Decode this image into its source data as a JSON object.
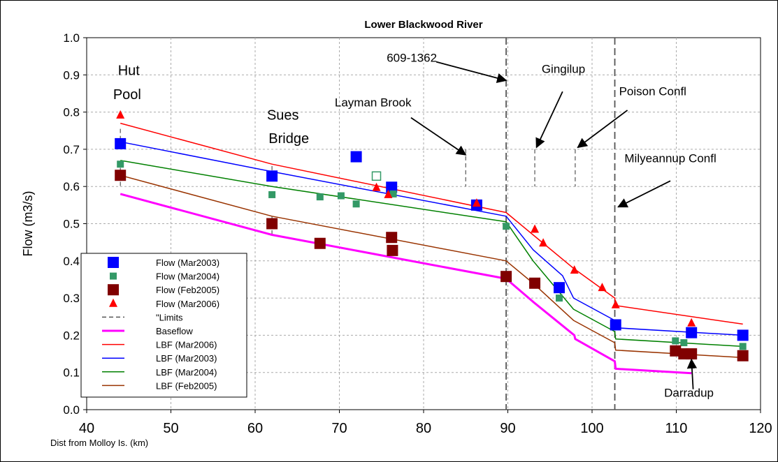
{
  "chart_data": {
    "type": "scatter",
    "title": "Lower Blackwood River",
    "xlabel": "Dist from Molloy Is. (km)",
    "ylabel": "Flow (m3/s)",
    "xlim": [
      40,
      120
    ],
    "ylim": [
      0,
      1.0
    ],
    "xticks": [
      "40",
      "50",
      "60",
      "70",
      "80",
      "90",
      "100",
      "110",
      "120"
    ],
    "yticks": [
      "0.0",
      "0.1",
      "0.2",
      "0.3",
      "0.4",
      "0.5",
      "0.6",
      "0.7",
      "0.8",
      "0.9",
      "1.0"
    ],
    "grid": true,
    "legend_position": "bottom-left",
    "series": [
      {
        "name": "Flow  (Mar2003)",
        "kind": "marker",
        "marker": "square",
        "color": "#0000ff",
        "points": [
          [
            44,
            0.715
          ],
          [
            62,
            0.628
          ],
          [
            72,
            0.68
          ],
          [
            76.2,
            0.598
          ],
          [
            86.3,
            0.55
          ],
          [
            96.1,
            0.328
          ],
          [
            102.8,
            0.228
          ],
          [
            111.8,
            0.207
          ],
          [
            117.9,
            0.2
          ]
        ]
      },
      {
        "name": "Flow  (Mar2004)",
        "kind": "marker",
        "marker": "square-small",
        "color": "#339966",
        "points": [
          [
            44,
            0.66
          ],
          [
            62,
            0.578
          ],
          [
            67.7,
            0.572
          ],
          [
            70.2,
            0.575
          ],
          [
            72,
            0.553
          ],
          [
            76.4,
            0.58
          ],
          [
            89.8,
            0.493
          ],
          [
            96.1,
            0.3
          ],
          [
            109.9,
            0.185
          ],
          [
            110.9,
            0.18
          ],
          [
            117.9,
            0.17
          ]
        ]
      },
      {
        "name": "Flow  (Feb2005)",
        "kind": "marker",
        "marker": "square",
        "color": "#800000",
        "points": [
          [
            44,
            0.63
          ],
          [
            62,
            0.5
          ],
          [
            67.7,
            0.447
          ],
          [
            76.2,
            0.463
          ],
          [
            76.3,
            0.428
          ],
          [
            89.8,
            0.358
          ],
          [
            93.2,
            0.34
          ],
          [
            109.9,
            0.158
          ],
          [
            110.9,
            0.15
          ],
          [
            111.8,
            0.15
          ],
          [
            117.9,
            0.145
          ]
        ]
      },
      {
        "name": "Flow  (Mar2006)",
        "kind": "marker",
        "marker": "triangle",
        "color": "#ff0000",
        "points": [
          [
            44,
            0.792
          ],
          [
            74.4,
            0.597
          ],
          [
            75.8,
            0.578
          ],
          [
            86.3,
            0.555
          ],
          [
            93.2,
            0.485
          ],
          [
            94.2,
            0.448
          ],
          [
            97.9,
            0.375
          ],
          [
            101.2,
            0.328
          ],
          [
            102.8,
            0.282
          ],
          [
            111.8,
            0.233
          ]
        ]
      },
      {
        "name": "Flow open",
        "kind": "marker",
        "marker": "square-open",
        "color": "#339966",
        "points": [
          [
            74.4,
            0.628
          ]
        ]
      },
      {
        "name": "\"Limits",
        "kind": "line",
        "color": "#555555",
        "dash": "6,4",
        "segments": [
          [
            [
              44,
              0.755
            ],
            [
              44,
              0.728
            ]
          ],
          [
            [
              44,
              0.65
            ],
            [
              44,
              0.6
            ]
          ],
          [
            [
              62,
              0.655
            ],
            [
              62,
              0.64
            ]
          ],
          [
            [
              62,
              0.52
            ],
            [
              62,
              0.47
            ]
          ],
          [
            [
              85,
              0.7
            ],
            [
              85,
              0.6
            ]
          ],
          [
            [
              93.2,
              0.7
            ],
            [
              93.2,
              0.6
            ]
          ],
          [
            [
              98,
              0.7
            ],
            [
              98,
              0.6
            ]
          ]
        ]
      },
      {
        "name": "Limits-major",
        "kind": "line",
        "color": "#555555",
        "dash": "10,5",
        "segments": [
          [
            [
              89.8,
              1.0
            ],
            [
              89.8,
              0.0
            ]
          ],
          [
            [
              102.7,
              1.0
            ],
            [
              102.7,
              0.0
            ]
          ]
        ]
      },
      {
        "name": "Baseflow",
        "kind": "line",
        "color": "#ff00ff",
        "width": 3,
        "points": [
          [
            44,
            0.58
          ],
          [
            62,
            0.47
          ],
          [
            89.8,
            0.352
          ],
          [
            93,
            0.29
          ],
          [
            97.9,
            0.2
          ],
          [
            98,
            0.19
          ],
          [
            102.7,
            0.13
          ],
          [
            102.8,
            0.11
          ],
          [
            111.8,
            0.098
          ]
        ]
      },
      {
        "name": "LBF (Mar2006)",
        "kind": "line",
        "color": "#ff0000",
        "width": 1.5,
        "points": [
          [
            44,
            0.77
          ],
          [
            62,
            0.66
          ],
          [
            89.8,
            0.53
          ],
          [
            93,
            0.47
          ],
          [
            97.8,
            0.38
          ],
          [
            102.7,
            0.3
          ],
          [
            102.8,
            0.28
          ],
          [
            117.9,
            0.23
          ]
        ]
      },
      {
        "name": "LBF (Mar2003)",
        "kind": "line",
        "color": "#0000ff",
        "width": 1.5,
        "points": [
          [
            44,
            0.72
          ],
          [
            62,
            0.64
          ],
          [
            89.8,
            0.52
          ],
          [
            93,
            0.43
          ],
          [
            96.5,
            0.36
          ],
          [
            97.8,
            0.3
          ],
          [
            102.7,
            0.24
          ],
          [
            102.8,
            0.22
          ],
          [
            117.9,
            0.2
          ]
        ]
      },
      {
        "name": "LBF (Mar2004)",
        "kind": "line",
        "color": "#008000",
        "width": 1.5,
        "points": [
          [
            44,
            0.67
          ],
          [
            62,
            0.6
          ],
          [
            89.8,
            0.505
          ],
          [
            93,
            0.4
          ],
          [
            97.8,
            0.27
          ],
          [
            102.7,
            0.21
          ],
          [
            102.8,
            0.19
          ],
          [
            117.9,
            0.17
          ]
        ]
      },
      {
        "name": "LBF (Feb2005)",
        "kind": "line",
        "color": "#993300",
        "width": 1.5,
        "points": [
          [
            44,
            0.63
          ],
          [
            62,
            0.52
          ],
          [
            89.8,
            0.4
          ],
          [
            93,
            0.34
          ],
          [
            97.8,
            0.24
          ],
          [
            102.7,
            0.18
          ],
          [
            102.8,
            0.16
          ],
          [
            117.9,
            0.14
          ]
        ]
      }
    ],
    "annotations": [
      {
        "text": "Hut",
        "x": 45,
        "y": 0.9
      },
      {
        "text": "Pool",
        "x": 44.8,
        "y": 0.835
      },
      {
        "text": "Sues",
        "x": 63.3,
        "y": 0.78
      },
      {
        "text": "Bridge",
        "x": 64,
        "y": 0.717
      },
      {
        "text": "Layman Brook",
        "x": 74,
        "y": 0.815
      },
      {
        "text": "609-1362",
        "x": 78.6,
        "y": 0.935
      },
      {
        "text": "Gingilup",
        "x": 96.6,
        "y": 0.905
      },
      {
        "text": "Poison Confl",
        "x": 107.2,
        "y": 0.845
      },
      {
        "text": "Milyeannup Confl",
        "x": 109.3,
        "y": 0.665
      },
      {
        "text": "Darradup",
        "x": 111.5,
        "y": 0.035
      }
    ],
    "arrows": [
      {
        "from": [
          81.5,
          0.935
        ],
        "to": [
          89.8,
          0.885
        ]
      },
      {
        "from": [
          78.5,
          0.785
        ],
        "to": [
          85,
          0.685
        ]
      },
      {
        "from": [
          96.5,
          0.855
        ],
        "to": [
          93.4,
          0.705
        ]
      },
      {
        "from": [
          104.2,
          0.805
        ],
        "to": [
          98.3,
          0.705
        ]
      },
      {
        "from": [
          109.3,
          0.615
        ],
        "to": [
          103.1,
          0.545
        ]
      },
      {
        "from": [
          112,
          0.055
        ],
        "to": [
          111.8,
          0.135
        ]
      }
    ],
    "legend": [
      {
        "label": "Flow  (Mar2003)",
        "series": 0
      },
      {
        "label": "Flow  (Mar2004)",
        "series": 1
      },
      {
        "label": "Flow  (Feb2005)",
        "series": 2
      },
      {
        "label": "Flow  (Mar2006)",
        "series": 3
      },
      {
        "label": "\"Limits",
        "series": 5
      },
      {
        "label": "Baseflow",
        "series": 7
      },
      {
        "label": "LBF (Mar2006)",
        "series": 8
      },
      {
        "label": "LBF (Mar2003)",
        "series": 9
      },
      {
        "label": "LBF (Mar2004)",
        "series": 10
      },
      {
        "label": "LBF (Feb2005)",
        "series": 11
      }
    ]
  }
}
